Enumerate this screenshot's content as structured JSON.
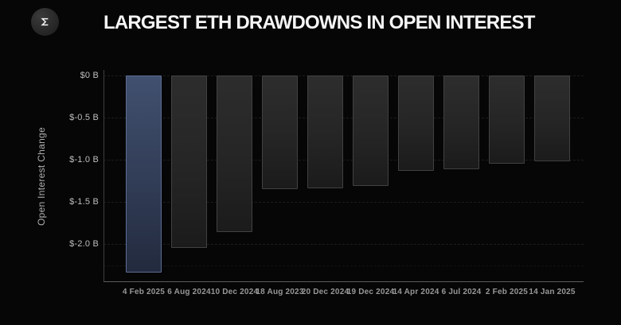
{
  "header": {
    "title": "LARGEST ETH DRAWDOWNS IN OPEN INTEREST",
    "logo_icon": "sigma-icon"
  },
  "chart_data": {
    "type": "bar",
    "title": "LARGEST ETH DRAWDOWNS IN OPEN INTEREST",
    "xlabel": "",
    "ylabel": "Open Interest Change",
    "unit": "billions USD",
    "ylim": [
      -2.45,
      0
    ],
    "grid": "horizontal-dotted",
    "legend": "none",
    "y_ticks": [
      "$0 B",
      "$-0.5 B",
      "$-1.0 B",
      "$-1.5 B",
      "$-2.0 B"
    ],
    "y_tick_values": [
      0,
      -0.5,
      -1.0,
      -1.5,
      -2.0
    ],
    "categories": [
      "4 Feb 2025",
      "6 Aug 2024",
      "10 Dec 2024",
      "18 Aug 2023",
      "20 Dec 2024",
      "19 Dec 2024",
      "14 Apr 2024",
      "6 Jul 2024",
      "2 Feb 2025",
      "14 Jan 2025"
    ],
    "values": [
      -2.34,
      -2.05,
      -1.86,
      -1.35,
      -1.34,
      -1.31,
      -1.13,
      -1.11,
      -1.05,
      -1.02
    ],
    "highlight_index": 0,
    "colors": {
      "background": "#060606",
      "highlight_bar_top": "#41506f",
      "highlight_bar_bottom": "#222a3e",
      "highlight_bar_border": "#5c6d92",
      "bar_top": "#2d2d2d",
      "bar_bottom": "#1b1b1b",
      "bar_border": "#414141",
      "title_text": "#f5f5f5",
      "tick_text": "#bdbdbd",
      "date_text": "#979797"
    }
  }
}
